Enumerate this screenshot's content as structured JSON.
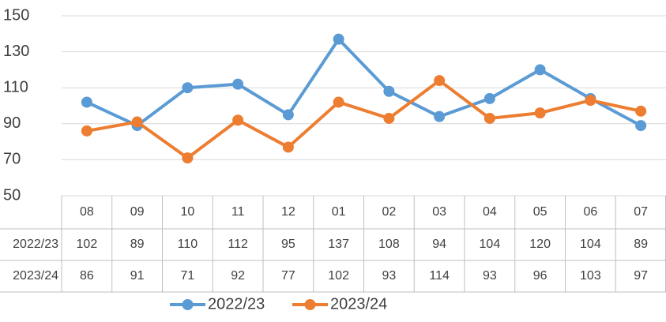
{
  "chart_data": {
    "type": "line",
    "categories": [
      "08",
      "09",
      "10",
      "11",
      "12",
      "01",
      "02",
      "03",
      "04",
      "05",
      "06",
      "07"
    ],
    "series": [
      {
        "name": "2022/23",
        "color": "#5b9bd5",
        "values": [
          102,
          89,
          110,
          112,
          95,
          137,
          108,
          94,
          104,
          120,
          104,
          89
        ]
      },
      {
        "name": "2023/24",
        "color": "#ed7d31",
        "values": [
          86,
          91,
          71,
          92,
          77,
          102,
          93,
          114,
          93,
          96,
          103,
          97
        ]
      }
    ],
    "ylim": [
      50,
      150
    ],
    "yticks": [
      50,
      70,
      90,
      110,
      130,
      150
    ],
    "grid": true
  }
}
